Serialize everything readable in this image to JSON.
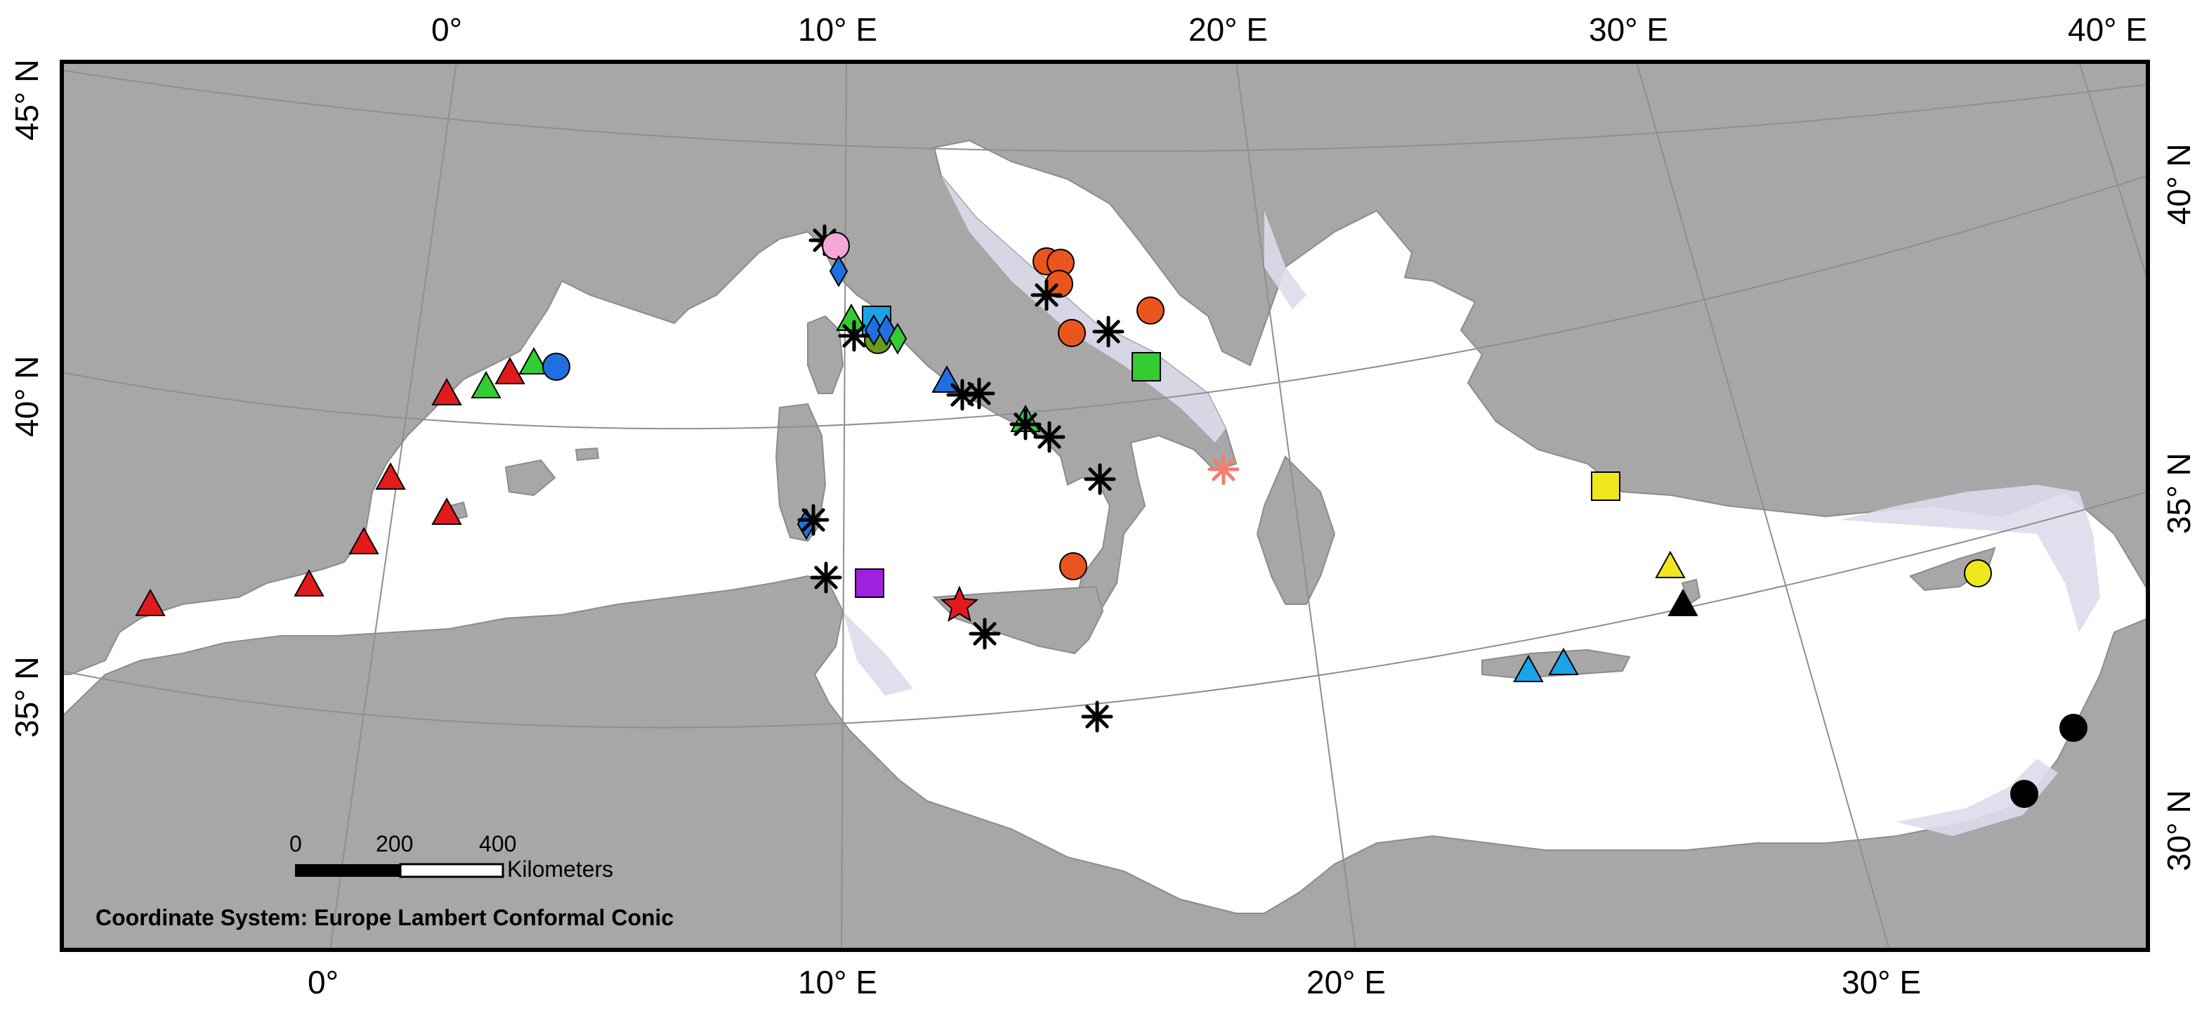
{
  "axes": {
    "top_lon": [
      "0°",
      "10° E",
      "20° E",
      "30° E",
      "40° E"
    ],
    "bottom_lon": [
      "0°",
      "10° E",
      "20° E",
      "30° E"
    ],
    "left_lat": [
      "45° N",
      "40° N",
      "35° N"
    ],
    "right_lat": [
      "40° N",
      "35° N",
      "30° N"
    ]
  },
  "scale_bar": {
    "ticks": [
      "0",
      "200",
      "400"
    ],
    "unit": "Kilometers"
  },
  "footer": "Coordinate System: Europe Lambert Conformal Conic",
  "colors": {
    "land": "#a7a7a7",
    "sea": "#ffffff",
    "shelf": "#dcdcec",
    "border": "#8c8c8c",
    "graticule": "#8f8f8f",
    "red": "#e31a1c",
    "green": "#33cc33",
    "blue": "#1f6fe0",
    "cyan": "#1aa3e8",
    "orange": "#e8561e",
    "yellow": "#f0e61e",
    "olive": "#6a9a1e",
    "pink": "#f4a6d8",
    "purple": "#a020e0",
    "black": "#000000",
    "salmon": "#f08070"
  },
  "markers": [
    {
      "shape": "triangle",
      "color": "red"
    },
    {
      "shape": "triangle",
      "color": "red"
    },
    {
      "shape": "triangle",
      "color": "red"
    },
    {
      "shape": "triangle",
      "color": "red"
    },
    {
      "shape": "triangle",
      "color": "red"
    },
    {
      "shape": "triangle",
      "color": "red"
    },
    {
      "shape": "triangle",
      "color": "red"
    },
    {
      "shape": "triangle",
      "color": "green"
    },
    {
      "shape": "triangle",
      "color": "green"
    },
    {
      "shape": "circle",
      "color": "blue"
    },
    {
      "shape": "asterisk",
      "color": "black"
    },
    {
      "shape": "circle",
      "color": "pink"
    },
    {
      "shape": "diamond",
      "color": "blue"
    },
    {
      "shape": "triangle",
      "color": "green"
    },
    {
      "shape": "square",
      "color": "cyan"
    },
    {
      "shape": "circle",
      "color": "olive"
    },
    {
      "shape": "diamond",
      "color": "blue"
    },
    {
      "shape": "diamond",
      "color": "blue"
    },
    {
      "shape": "diamond",
      "color": "green"
    },
    {
      "shape": "asterisk",
      "color": "black"
    },
    {
      "shape": "triangle",
      "color": "blue"
    },
    {
      "shape": "asterisk",
      "color": "black"
    },
    {
      "shape": "asterisk",
      "color": "black"
    },
    {
      "shape": "triangle",
      "color": "green"
    },
    {
      "shape": "asterisk",
      "color": "black"
    },
    {
      "shape": "asterisk",
      "color": "black"
    },
    {
      "shape": "asterisk",
      "color": "black"
    },
    {
      "shape": "diamond",
      "color": "blue"
    },
    {
      "shape": "asterisk",
      "color": "black"
    },
    {
      "shape": "asterisk",
      "color": "black"
    },
    {
      "shape": "square",
      "color": "purple"
    },
    {
      "shape": "star",
      "color": "red"
    },
    {
      "shape": "asterisk",
      "color": "black"
    },
    {
      "shape": "asterisk",
      "color": "black"
    },
    {
      "shape": "circle",
      "color": "orange"
    },
    {
      "shape": "circle",
      "color": "orange"
    },
    {
      "shape": "circle",
      "color": "orange"
    },
    {
      "shape": "asterisk",
      "color": "black"
    },
    {
      "shape": "circle",
      "color": "orange"
    },
    {
      "shape": "circle",
      "color": "orange"
    },
    {
      "shape": "asterisk",
      "color": "black"
    },
    {
      "shape": "square",
      "color": "green"
    },
    {
      "shape": "circle",
      "color": "orange"
    },
    {
      "shape": "asterisk",
      "color": "salmon"
    },
    {
      "shape": "square",
      "color": "yellow"
    },
    {
      "shape": "triangle",
      "color": "yellow"
    },
    {
      "shape": "triangle",
      "color": "black"
    },
    {
      "shape": "triangle",
      "color": "cyan"
    },
    {
      "shape": "triangle",
      "color": "cyan"
    },
    {
      "shape": "circle",
      "color": "yellow"
    },
    {
      "shape": "circle",
      "color": "black"
    },
    {
      "shape": "circle",
      "color": "black"
    }
  ]
}
